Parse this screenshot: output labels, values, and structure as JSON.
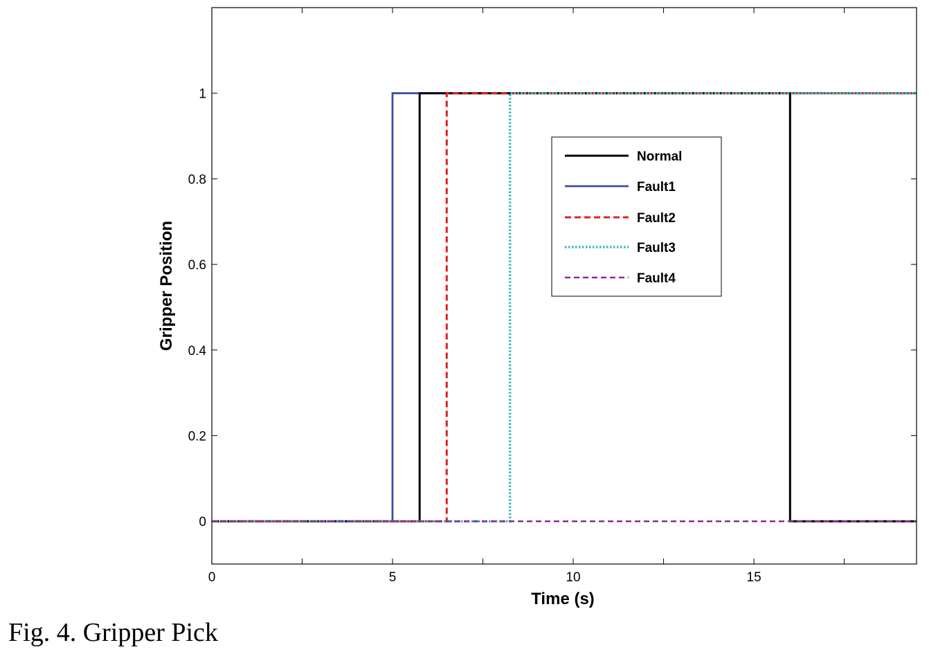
{
  "caption": "Fig. 4. Gripper Pick",
  "chart_data": {
    "type": "line",
    "xlabel": "Time (s)",
    "ylabel": "Gripper Position",
    "xlim": [
      0,
      19.5
    ],
    "ylim": [
      -0.1,
      1.2
    ],
    "xticks": [
      0,
      5,
      10,
      15
    ],
    "yticks": [
      0,
      0.2,
      0.4,
      0.6,
      0.8,
      1
    ],
    "ytick_labels": [
      "0",
      "0.2",
      "0.4",
      "0.6",
      "0.8",
      "1"
    ],
    "grid": false,
    "legend_position": "upper-center",
    "series": [
      {
        "name": "Normal",
        "color": "#000000",
        "style": "solid",
        "x": [
          0,
          5.75,
          5.75,
          16.0,
          16.0,
          19.5
        ],
        "y": [
          0,
          0,
          1,
          1,
          0,
          0
        ]
      },
      {
        "name": "Fault1",
        "color": "#3a4ea0",
        "style": "solid",
        "x": [
          0,
          5.0,
          5.0,
          19.5
        ],
        "y": [
          0,
          0,
          1,
          1
        ]
      },
      {
        "name": "Fault2",
        "color": "#e02020",
        "style": "dashed",
        "x": [
          0,
          6.5,
          6.5,
          19.5
        ],
        "y": [
          0,
          0,
          1,
          1
        ]
      },
      {
        "name": "Fault3",
        "color": "#3cbdb5",
        "style": "dotted",
        "x": [
          0,
          8.25,
          8.25,
          19.5
        ],
        "y": [
          0,
          0,
          1,
          1
        ]
      },
      {
        "name": "Fault4",
        "color": "#8e2a96",
        "style": "dashed-thin",
        "x": [
          0,
          19.5
        ],
        "y": [
          0,
          0
        ]
      }
    ]
  }
}
